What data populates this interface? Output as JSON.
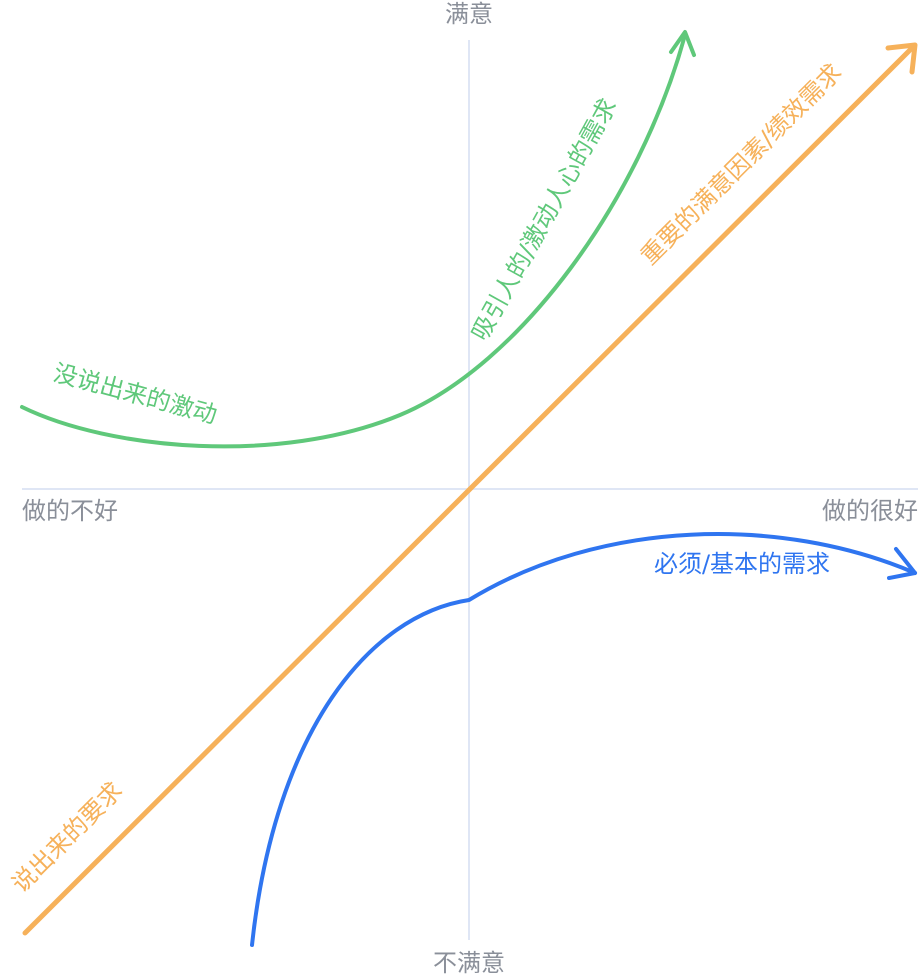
{
  "axes": {
    "top": "满意",
    "bottom": "不满意",
    "left": "做的不好",
    "right": "做的很好"
  },
  "curves": {
    "attractive": {
      "label_start": "没说出来的激动",
      "label_end": "吸引人的/激动人心的需求"
    },
    "performance": {
      "label_start": "说出来的要求",
      "label_end": "重要的满意因素/绩效需求"
    },
    "basic": {
      "label": "必须/基本的需求"
    }
  }
}
